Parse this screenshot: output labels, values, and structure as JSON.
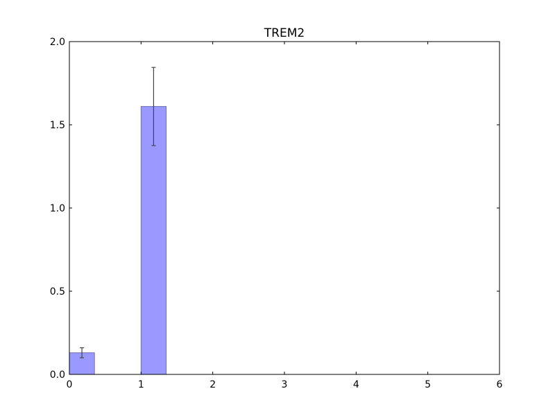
{
  "chart_data": {
    "type": "bar",
    "title": "TREM2",
    "xlabel": "",
    "ylabel": "",
    "xlim": [
      0,
      6
    ],
    "ylim": [
      0,
      2.0
    ],
    "x_ticks": [
      0,
      1,
      2,
      3,
      4,
      5,
      6
    ],
    "x_tick_labels": [
      "0",
      "1",
      "2",
      "3",
      "4",
      "5",
      "6"
    ],
    "y_ticks": [
      0.0,
      0.5,
      1.0,
      1.5,
      2.0
    ],
    "y_tick_labels": [
      "0.0",
      "0.5",
      "1.0",
      "1.5",
      "2.0"
    ],
    "grid": false,
    "series": [
      {
        "bar_color": "#9999ff",
        "bar_edge_color": "#6d6db5",
        "error_color": "#444444",
        "bars": [
          {
            "x_start": 0,
            "x_end": 0.35,
            "value": 0.13,
            "error": 0.03
          },
          {
            "x_start": 1,
            "x_end": 1.35,
            "value": 1.61,
            "error": 0.235
          }
        ]
      }
    ]
  }
}
